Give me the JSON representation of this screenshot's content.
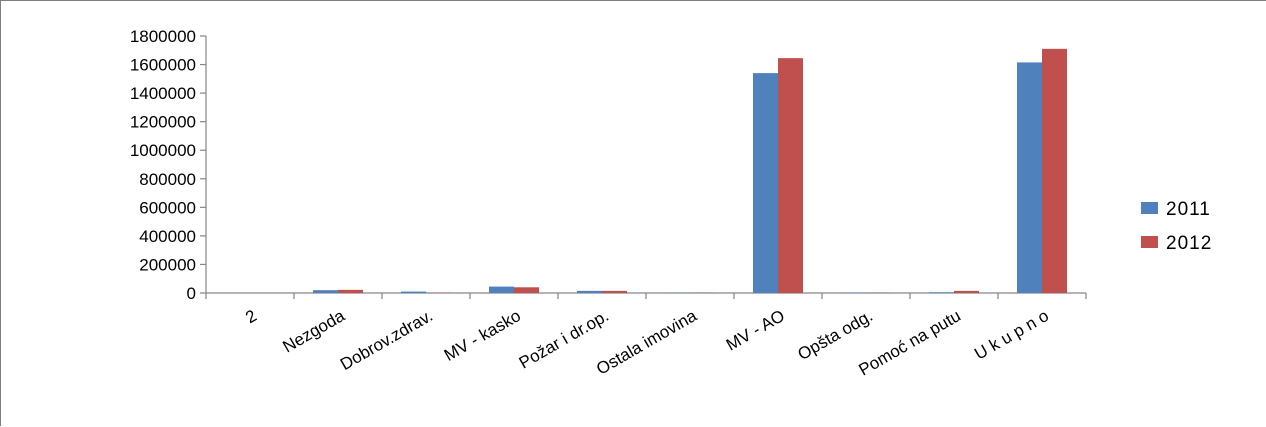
{
  "chart_data": {
    "type": "bar",
    "title": "",
    "xlabel": "",
    "ylabel": "",
    "ylim": [
      0,
      1800000
    ],
    "yticks": [
      0,
      200000,
      400000,
      600000,
      800000,
      1000000,
      1200000,
      1400000,
      1600000,
      1800000
    ],
    "yticks_labels": [
      "0",
      "200000",
      "400000",
      "600000",
      "800000",
      "1000000",
      "1200000",
      "1400000",
      "1600000",
      "1800000"
    ],
    "grid": false,
    "legend": "right",
    "categories": [
      "2",
      "Nezgoda",
      "Dobrov.zdrav.",
      "MV - kasko",
      "Požar i dr.op.",
      "Ostala imovina",
      "MV - AO",
      "Opšta odg.",
      "Pomoć na putu",
      "U k u p n o"
    ],
    "series": [
      {
        "name": "2011",
        "color": "#4f81bd",
        "values": [
          0,
          20000,
          10000,
          45000,
          15000,
          2000,
          1540000,
          3000,
          5000,
          1615000
        ]
      },
      {
        "name": "2012",
        "color": "#c0504d",
        "values": [
          0,
          22000,
          2000,
          40000,
          15000,
          2000,
          1645000,
          2000,
          15000,
          1710000
        ]
      }
    ]
  }
}
